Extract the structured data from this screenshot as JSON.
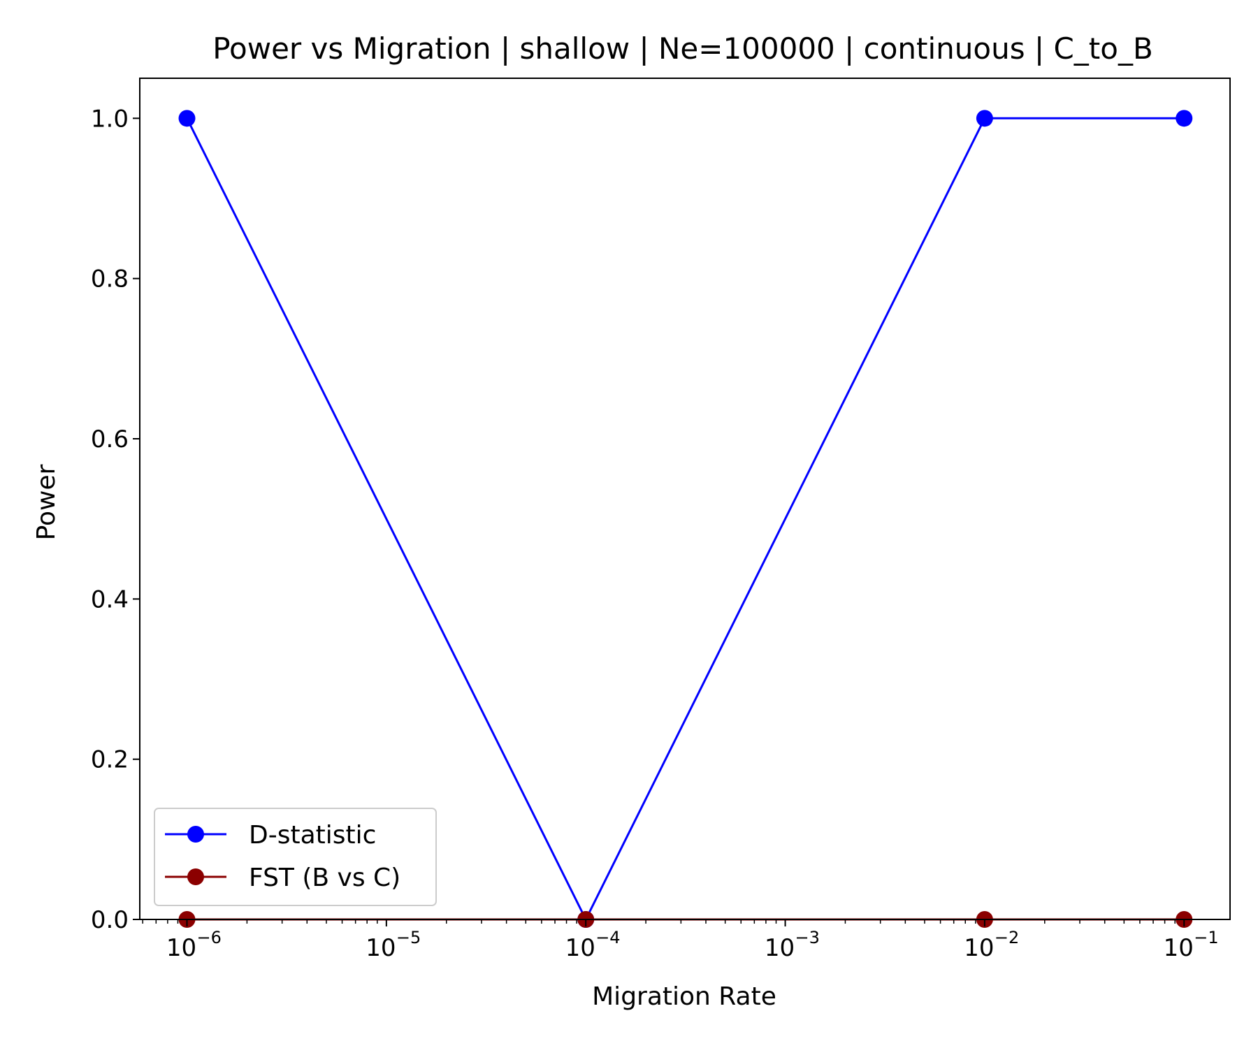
{
  "chart_data": {
    "type": "line",
    "title": "Power vs Migration | shallow | Ne=100000 | continuous | C_to_B",
    "xlabel": "Migration Rate",
    "ylabel": "Power",
    "x_scale": "log",
    "x": [
      1e-06,
      0.0001,
      0.01,
      0.1
    ],
    "xlim": [
      5.8e-07,
      0.17
    ],
    "ylim": [
      0.0,
      1.05
    ],
    "x_ticks": [
      {
        "base": "10",
        "exp": "−6",
        "value": 1e-06
      },
      {
        "base": "10",
        "exp": "−5",
        "value": 1e-05
      },
      {
        "base": "10",
        "exp": "−4",
        "value": 0.0001
      },
      {
        "base": "10",
        "exp": "−3",
        "value": 0.001
      },
      {
        "base": "10",
        "exp": "−2",
        "value": 0.01
      },
      {
        "base": "10",
        "exp": "−1",
        "value": 0.1
      }
    ],
    "y_ticks": [
      {
        "label": "0.0",
        "value": 0.0
      },
      {
        "label": "0.2",
        "value": 0.2
      },
      {
        "label": "0.4",
        "value": 0.4
      },
      {
        "label": "0.6",
        "value": 0.6
      },
      {
        "label": "0.8",
        "value": 0.8
      },
      {
        "label": "1.0",
        "value": 1.0
      }
    ],
    "grid": false,
    "legend_position": "lower-left",
    "series": [
      {
        "name": "D-statistic",
        "color": "#0000ff",
        "marker": "circle",
        "values": [
          1.0,
          0.0,
          1.0,
          1.0
        ]
      },
      {
        "name": "FST (B vs C)",
        "color": "#8b0000",
        "marker": "circle",
        "values": [
          0.0,
          0.0,
          0.0,
          0.0
        ]
      }
    ]
  }
}
